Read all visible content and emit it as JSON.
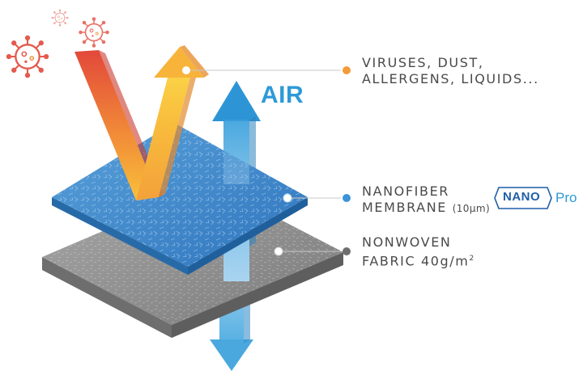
{
  "labels": {
    "air": "AIR",
    "viruses_line1": "VIRUSES, DUST,",
    "viruses_line2": "ALLERGENS, LIQUIDS...",
    "membrane_line1": "NANOFIBER",
    "membrane_line2": "MEMBRANE",
    "membrane_thickness": "(10µm)",
    "fabric_line1": "NONWOVEN",
    "fabric_line2_prefix": "FABRIC 40g/m",
    "fabric_line2_sup": "2"
  },
  "logo": {
    "nano": "NANO",
    "pro": "Pro"
  },
  "icons": [
    "virus-icon",
    "air-arrow-icon",
    "blocked-arrow-icon"
  ],
  "colors": {
    "air_blue": "#2d9ad8",
    "membrane_blue": "#3f86c9",
    "fabric_gray": "#8c8c8c",
    "arrow_red": "#e0463a",
    "arrow_orange": "#f6a42c",
    "virus_red": "#e45a4d",
    "dot_orange": "#f39a3a",
    "dot_blue": "#3d93d8",
    "dot_gray": "#6e6e6e"
  }
}
